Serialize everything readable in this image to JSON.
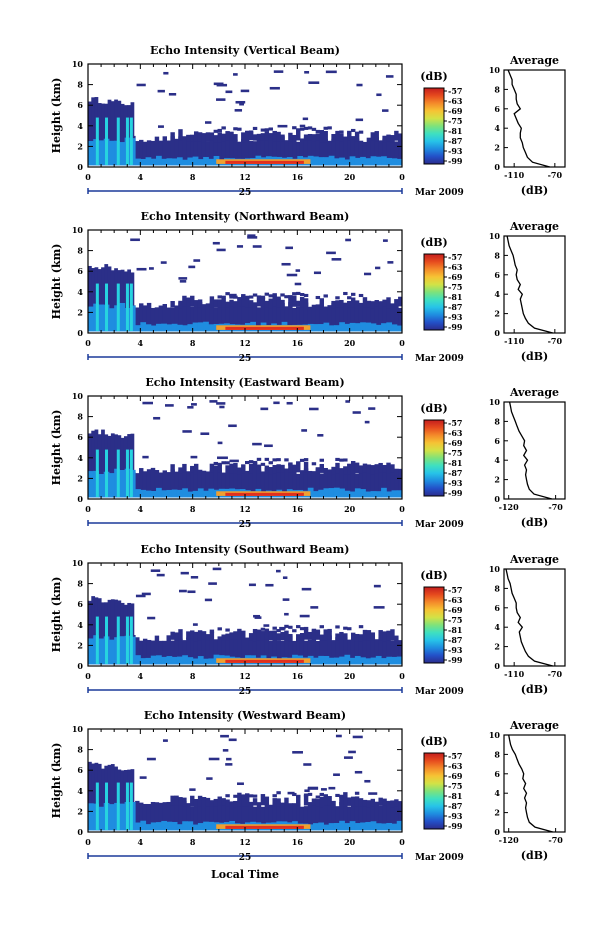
{
  "figure": {
    "shared": {
      "height_label": "Height (km)",
      "unit_label": "(dB)",
      "date_label": "Mar 2009",
      "date_number": "25",
      "x_label": "Local Time",
      "avg_title": "Average",
      "avg_xlabel": "(dB)",
      "colorbar_ticks": [
        "-57",
        "-63",
        "-69",
        "-75",
        "-81",
        "-87",
        "-93",
        "-99"
      ],
      "colorbar_colors": [
        "#2b2c8c",
        "#2350c8",
        "#1f8de0",
        "#27c3e8",
        "#3fe0c0",
        "#7fe27a",
        "#d3e246",
        "#f6c334",
        "#f48a2a",
        "#e64a1e",
        "#c41e1e"
      ]
    },
    "colors": {
      "low": "#2b2f88",
      "mid": "#1f8de0",
      "cyan": "#27d3e0",
      "high": "#e0301e",
      "orange": "#f0a030"
    }
  },
  "chart_data": [
    {
      "type": "heatmap",
      "title": "Echo Intensity (Vertical Beam)",
      "xticks": [
        "0",
        "4",
        "8",
        "12",
        "16",
        "20",
        "0"
      ],
      "x": [
        0,
        4,
        8,
        12,
        16,
        20,
        24
      ],
      "xlim": [
        0,
        24
      ],
      "ylim": [
        0,
        10
      ],
      "yticks": [
        "0",
        "2",
        "4",
        "6",
        "8",
        "10"
      ],
      "colorbar": {
        "range": [
          -99,
          -57
        ]
      },
      "average": {
        "xlim": [
          -120,
          -60
        ],
        "xticks": [
          "-110",
          "-70"
        ],
        "ylim": [
          0,
          10
        ],
        "profile_db": [
          -75,
          -92,
          -97,
          -99,
          -101,
          -102,
          -104,
          -104,
          -103,
          -106,
          -108,
          -110,
          -104,
          -107,
          -108,
          -108,
          -110,
          -112,
          -112,
          -114,
          -116
        ]
      }
    },
    {
      "type": "heatmap",
      "title": "Echo Intensity (Northward Beam)",
      "xticks": [
        "0",
        "4",
        "8",
        "12",
        "16",
        "20",
        "0"
      ],
      "x": [
        0,
        4,
        8,
        12,
        16,
        20,
        24
      ],
      "xlim": [
        0,
        24
      ],
      "ylim": [
        0,
        10
      ],
      "yticks": [
        "0",
        "2",
        "4",
        "6",
        "8",
        "10"
      ],
      "colorbar": {
        "range": [
          -99,
          -57
        ]
      },
      "average": {
        "xlim": [
          -120,
          -60
        ],
        "xticks": [
          "-110",
          "-70"
        ],
        "ylim": [
          0,
          10
        ],
        "profile_db": [
          -72,
          -90,
          -96,
          -99,
          -101,
          -102,
          -103,
          -104,
          -102,
          -106,
          -104,
          -107,
          -108,
          -107,
          -109,
          -110,
          -111,
          -113,
          -115,
          -116,
          -117
        ]
      }
    },
    {
      "type": "heatmap",
      "title": "Echo Intensity (Eastward Beam)",
      "xticks": [
        "0",
        "4",
        "8",
        "12",
        "16",
        "20",
        "0"
      ],
      "x": [
        0,
        4,
        8,
        12,
        16,
        20,
        24
      ],
      "xlim": [
        0,
        24
      ],
      "ylim": [
        0,
        10
      ],
      "yticks": [
        "0",
        "2",
        "4",
        "6",
        "8",
        "10"
      ],
      "colorbar": {
        "range": [
          -99,
          -57
        ]
      },
      "average": {
        "xlim": [
          -125,
          -60
        ],
        "xticks": [
          "-120",
          "-70"
        ],
        "ylim": [
          0,
          10
        ],
        "profile_db": [
          -74,
          -93,
          -98,
          -100,
          -101,
          -102,
          -101,
          -103,
          -100,
          -104,
          -101,
          -104,
          -103,
          -106,
          -109,
          -111,
          -113,
          -115,
          -117,
          -118,
          -119
        ]
      }
    },
    {
      "type": "heatmap",
      "title": "Echo Intensity (Southward Beam)",
      "xticks": [
        "0",
        "4",
        "8",
        "12",
        "16",
        "20",
        "0"
      ],
      "x": [
        0,
        4,
        8,
        12,
        16,
        20,
        24
      ],
      "xlim": [
        0,
        24
      ],
      "ylim": [
        0,
        10
      ],
      "yticks": [
        "0",
        "2",
        "4",
        "6",
        "8",
        "10"
      ],
      "colorbar": {
        "range": [
          -99,
          -57
        ]
      },
      "average": {
        "xlim": [
          -120,
          -60
        ],
        "xticks": [
          "-110",
          "-70"
        ],
        "ylim": [
          0,
          10
        ],
        "profile_db": [
          -72,
          -90,
          -96,
          -99,
          -101,
          -103,
          -104,
          -105,
          -102,
          -106,
          -104,
          -107,
          -108,
          -108,
          -110,
          -112,
          -113,
          -114,
          -116,
          -117,
          -118
        ]
      }
    },
    {
      "type": "heatmap",
      "title": "Echo Intensity (Westward Beam)",
      "xticks": [
        "0",
        "4",
        "8",
        "12",
        "16",
        "20",
        "0"
      ],
      "x": [
        0,
        4,
        8,
        12,
        16,
        20,
        24
      ],
      "xlim": [
        0,
        24
      ],
      "ylim": [
        0,
        10
      ],
      "yticks": [
        "0",
        "2",
        "4",
        "6",
        "8",
        "10"
      ],
      "colorbar": {
        "range": [
          -99,
          -57
        ]
      },
      "average": {
        "xlim": [
          -125,
          -60
        ],
        "xticks": [
          "-120",
          "-70"
        ],
        "ylim": [
          0,
          10
        ],
        "profile_db": [
          -73,
          -92,
          -98,
          -100,
          -101,
          -102,
          -101,
          -103,
          -101,
          -104,
          -102,
          -105,
          -104,
          -106,
          -109,
          -111,
          -113,
          -116,
          -118,
          -119,
          -120
        ]
      }
    }
  ]
}
